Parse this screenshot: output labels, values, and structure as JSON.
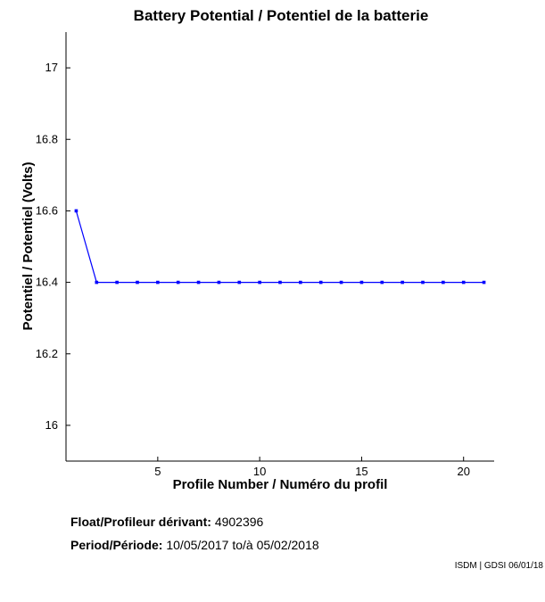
{
  "chart_data": {
    "type": "line",
    "title": "Battery Potential / Potentiel de la batterie",
    "xlabel": "Profile Number / Numéro du profil",
    "ylabel": "Potentiel / Potentiel (Volts)",
    "xlim": [
      0.5,
      21.5
    ],
    "ylim": [
      15.9,
      17.1
    ],
    "xticks": [
      5,
      10,
      15,
      20
    ],
    "yticks": [
      16,
      16.2,
      16.4,
      16.6,
      16.8,
      17
    ],
    "grid": false,
    "series": [
      {
        "color": "#0000ff",
        "x": [
          1,
          2,
          3,
          4,
          5,
          6,
          7,
          8,
          9,
          10,
          11,
          12,
          13,
          14,
          15,
          16,
          17,
          18,
          19,
          20,
          21
        ],
        "y": [
          16.6,
          16.4,
          16.4,
          16.4,
          16.4,
          16.4,
          16.4,
          16.4,
          16.4,
          16.4,
          16.4,
          16.4,
          16.4,
          16.4,
          16.4,
          16.4,
          16.4,
          16.4,
          16.4,
          16.4,
          16.4
        ]
      }
    ]
  },
  "info": {
    "float_label": "Float/Profileur dérivant:",
    "float_value": "4902396",
    "period_label": "Period/Période:",
    "period_start": "10/05/2017",
    "period_sep": "to/à",
    "period_end": "05/02/2018"
  },
  "credit": "ISDM | GDSI 06/01/18"
}
